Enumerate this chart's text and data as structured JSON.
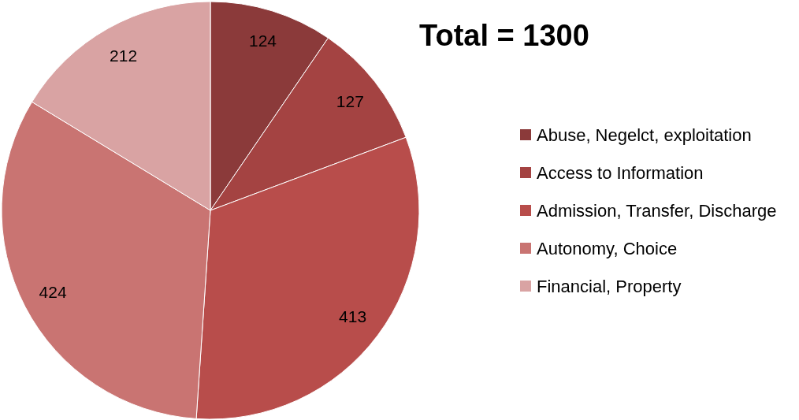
{
  "chart_data": {
    "type": "pie",
    "title": "Total = 1300",
    "categories": [
      "Abuse, Negelct, exploitation",
      "Access to Information",
      "Admission, Transfer, Discharge",
      "Autonomy, Choice",
      "Financial, Property"
    ],
    "values": [
      124,
      127,
      413,
      424,
      212
    ],
    "colors": [
      "#8b3a3a",
      "#a44342",
      "#b84d4b",
      "#c97472",
      "#d9a3a3"
    ],
    "data_labels": true,
    "legend": "right"
  }
}
